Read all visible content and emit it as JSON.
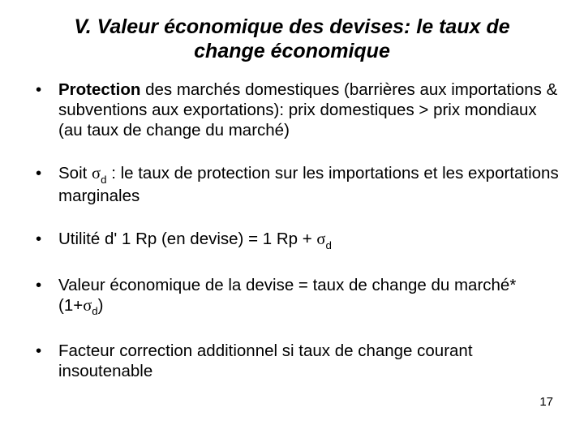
{
  "colors": {
    "background": "#ffffff",
    "text": "#000000"
  },
  "title": {
    "line1": "V. Valeur économique des devises: le taux de",
    "line2": "change économique",
    "fontsize_pt": 19,
    "italic": true,
    "bold": true
  },
  "bullets": [
    {
      "html": "<span class=\"bold\">Protection</span> des marchés domestiques (barrières aux importations & subventions aux exportations): prix domestiques > prix mondiaux (au taux de change du marché)"
    },
    {
      "html": "Soit <span class=\"sigma\">σ</span><span class=\"sub\">d</span> : le taux de protection sur les importations et les exportations marginales"
    },
    {
      "html": "Utilité d' 1 Rp (en devise) = 1 Rp + <span class=\"sigma\">σ</span><span class=\"sub\">d</span>"
    },
    {
      "html": "Valeur économique de la devise = taux de change du marché*(1+<span class=\"sigma\">σ</span><span class=\"sub\">d</span>)"
    },
    {
      "html": "Facteur correction additionnel si taux de change courant insoutenable"
    }
  ],
  "body_fontsize_pt": 15.5,
  "page_number": "17"
}
